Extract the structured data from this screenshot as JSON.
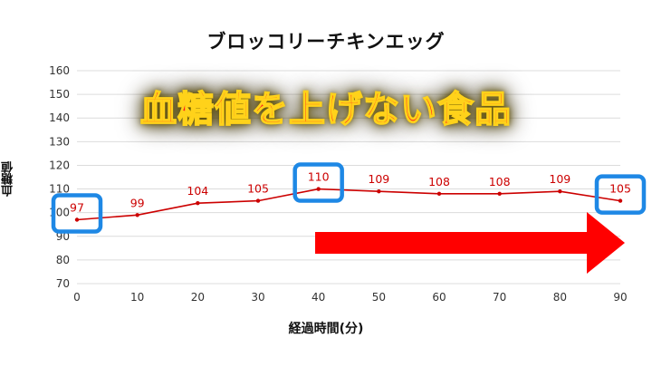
{
  "chart_data": {
    "type": "line",
    "title": "ブロッコリーチキンエッグ",
    "xlabel": "経過時間(分)",
    "ylabel": "血糖値",
    "x": [
      0,
      10,
      20,
      30,
      40,
      50,
      60,
      70,
      80,
      90
    ],
    "series": [
      {
        "values": [
          97,
          99,
          104,
          105,
          110,
          109,
          108,
          108,
          109,
          105
        ]
      }
    ],
    "data_labels": [
      "97",
      "99",
      "104",
      "105",
      "110",
      "109",
      "108",
      "108",
      "109",
      "105"
    ],
    "xlim": [
      0,
      90
    ],
    "ylim": [
      70,
      160
    ],
    "x_ticks": [
      "0",
      "10",
      "20",
      "30",
      "40",
      "50",
      "60",
      "70",
      "80",
      "90"
    ],
    "y_ticks": [
      "70",
      "80",
      "90",
      "100",
      "110",
      "120",
      "130",
      "140",
      "150",
      "160"
    ],
    "grid": true,
    "highlighted_points": [
      0,
      4,
      9
    ],
    "colors": {
      "line": "#cc0000",
      "highlight_box": "#1e88e5",
      "arrow": "#ff0000"
    }
  },
  "banner_text": "血糖値を上げない食品",
  "annotations": {
    "arrow": "right-arrow"
  }
}
